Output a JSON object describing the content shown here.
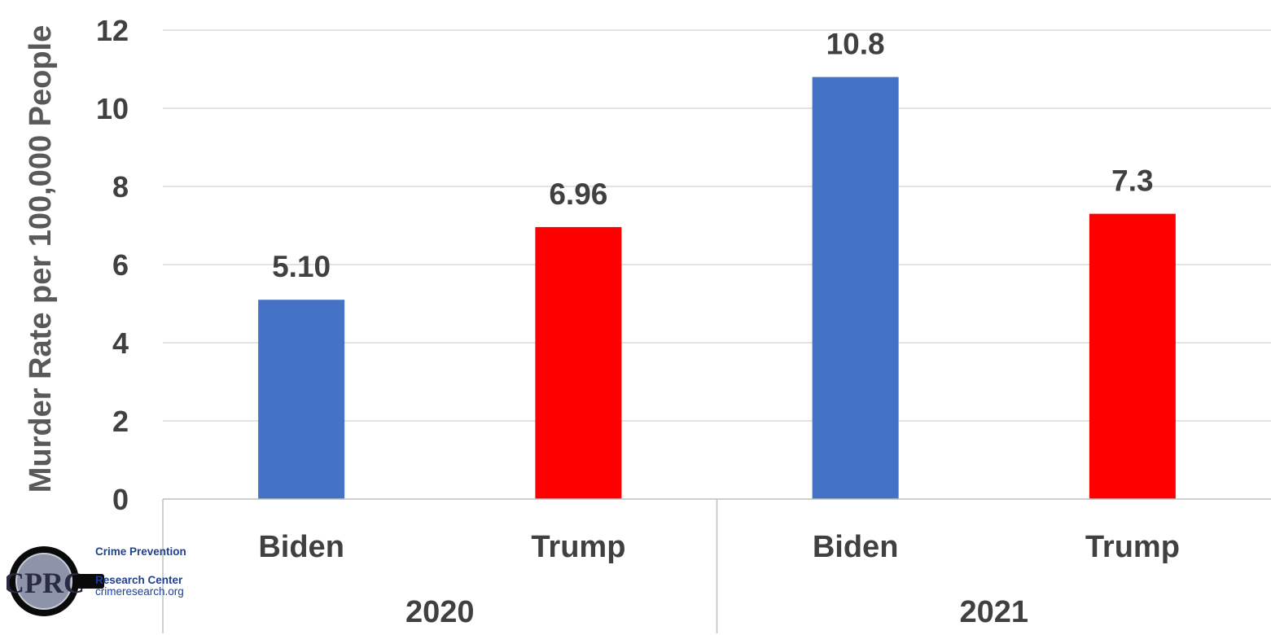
{
  "chart_data": {
    "type": "bar",
    "ylabel": "Murder Rate per 100,000 People",
    "ylim": [
      0,
      12
    ],
    "yticks": [
      0,
      2,
      4,
      6,
      8,
      10,
      12
    ],
    "grid": true,
    "groups": [
      {
        "label": "2020",
        "bars": [
          {
            "label": "Biden",
            "value": 5.1,
            "value_label": "5.10",
            "color": "#4472c4"
          },
          {
            "label": "Trump",
            "value": 6.96,
            "value_label": "6.96",
            "color": "#ff0000"
          }
        ]
      },
      {
        "label": "2021",
        "bars": [
          {
            "label": "Biden",
            "value": 10.8,
            "value_label": "10.8",
            "color": "#4472c4"
          },
          {
            "label": "Trump",
            "value": 7.3,
            "value_label": "7.3",
            "color": "#ff0000"
          }
        ]
      }
    ]
  },
  "logo": {
    "monogram": "CPRC",
    "line1": "Crime Prevention",
    "line2": "Research Center",
    "url": "crimeresearch.org"
  }
}
